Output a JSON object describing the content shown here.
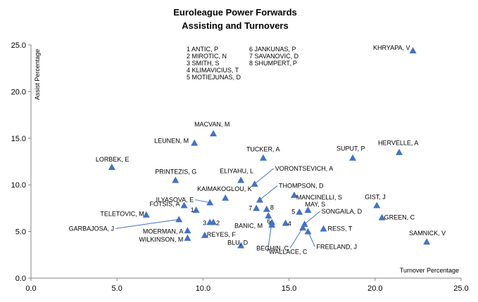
{
  "chart_data": {
    "type": "scatter",
    "title": [
      "Euroleague Power Forwards",
      "Assisting and Turnovers"
    ],
    "xlabel": "Turnover Percentage",
    "ylabel": "Assist Percentage",
    "xlim": [
      0,
      25
    ],
    "ylim": [
      0,
      25
    ],
    "xticks": [
      "0.0",
      "5.0",
      "10.0",
      "15.0",
      "20.0",
      "25.0"
    ],
    "yticks": [
      "0.0",
      "5.0",
      "10.0",
      "15.0",
      "20.0",
      "25.0"
    ],
    "grid": false,
    "marker_color": "#4472C4",
    "key": [
      [
        "1 ANTIC, P",
        "6 JANKUNAS, P"
      ],
      [
        "2 MIROTIC, N",
        "7 SAVANOVIC, D"
      ],
      [
        "3 SMITH, S",
        "8 SHUMPERT, P"
      ],
      [
        "4 KLIMAVICIUS, T",
        ""
      ],
      [
        "5 MOTIEJUNAS, D",
        ""
      ]
    ],
    "points": [
      {
        "label": "KHRYAPA, V",
        "x": 22.2,
        "y": 24.4
      },
      {
        "label": "MACVAN, M",
        "x": 10.6,
        "y": 15.5
      },
      {
        "label": "LEUNEN, M",
        "x": 9.5,
        "y": 14.5
      },
      {
        "label": "TUCKER, A",
        "x": 13.5,
        "y": 12.9
      },
      {
        "label": "SUPUT, P",
        "x": 18.7,
        "y": 12.9
      },
      {
        "label": "HERVELLE, A",
        "x": 21.4,
        "y": 13.5
      },
      {
        "label": "LORBEK, E",
        "x": 4.7,
        "y": 11.9
      },
      {
        "label": "PRINTEZIS, G",
        "x": 8.4,
        "y": 10.5
      },
      {
        "label": "ELIYAHU, L",
        "x": 12.2,
        "y": 10.5
      },
      {
        "label": "VORONTSEVICH, A",
        "x": 13.0,
        "y": 10.1
      },
      {
        "label": "THOMPSON, D",
        "x": 13.3,
        "y": 8.4
      },
      {
        "label": "KAIMAKOGLOU, K",
        "x": 11.3,
        "y": 8.6
      },
      {
        "label": "MANCINELLI, S",
        "x": 15.3,
        "y": 8.9
      },
      {
        "label": "ILYASOVA, E",
        "x": 10.4,
        "y": 8.1
      },
      {
        "label": "FOTSIS, A",
        "x": 8.9,
        "y": 7.8
      },
      {
        "label": "1",
        "x": 9.6,
        "y": 7.3
      },
      {
        "label": "TELETOVIC, M",
        "x": 6.7,
        "y": 6.8
      },
      {
        "label": "GIST, J",
        "x": 20.1,
        "y": 7.8
      },
      {
        "label": "GREEN, C",
        "x": 20.4,
        "y": 6.5
      },
      {
        "label": "MAY, S",
        "x": 16.1,
        "y": 7.3
      },
      {
        "label": "5",
        "x": 15.6,
        "y": 7.1
      },
      {
        "label": "7",
        "x": 13.1,
        "y": 7.5
      },
      {
        "label": "8",
        "x": 13.7,
        "y": 7.4
      },
      {
        "label": "6",
        "x": 13.8,
        "y": 6.7
      },
      {
        "label": "SONGAILA, D",
        "x": 15.9,
        "y": 5.8
      },
      {
        "label": "GARBAJOSA, J",
        "x": 8.6,
        "y": 6.3
      },
      {
        "label": "3",
        "x": 10.4,
        "y": 6.0
      },
      {
        "label": "2",
        "x": 10.6,
        "y": 6.0
      },
      {
        "label": "BANIC, M",
        "x": 14.0,
        "y": 5.7
      },
      {
        "label": "4",
        "x": 14.8,
        "y": 5.9
      },
      {
        "label": "RESS, T",
        "x": 17.0,
        "y": 5.3
      },
      {
        "label": "MOERMAN, A",
        "x": 9.1,
        "y": 5.1
      },
      {
        "label": "REYES, F",
        "x": 10.1,
        "y": 4.6
      },
      {
        "label": "WILKINSON, M",
        "x": 9.1,
        "y": 4.3
      },
      {
        "label": "BLU, D",
        "x": 12.2,
        "y": 3.5
      },
      {
        "label": "BEGHIN, C",
        "x": 15.8,
        "y": 5.4
      },
      {
        "label": "FREELAND, J",
        "x": 16.1,
        "y": 5.0
      },
      {
        "label": "WALLACE, C",
        "x": 14.0,
        "y": 6.0
      },
      {
        "label": "SAMNICK, V",
        "x": 23.0,
        "y": 3.9
      }
    ]
  }
}
